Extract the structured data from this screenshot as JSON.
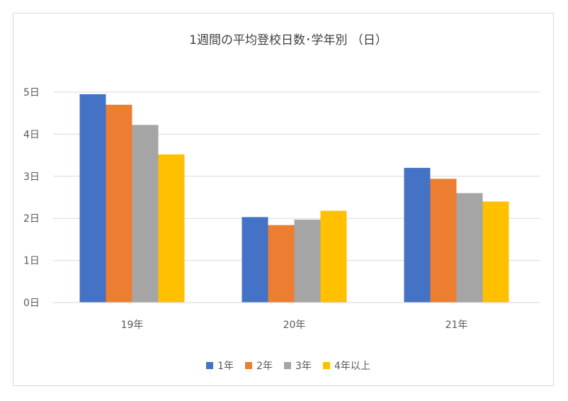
{
  "chart_data": {
    "type": "bar",
    "title": "1週間の平均登校日数･学年別 （日）",
    "categories": [
      "19年",
      "20年",
      "21年"
    ],
    "series": [
      {
        "name": "1年",
        "color": "#4472c4",
        "values": [
          4.95,
          2.03,
          3.2
        ]
      },
      {
        "name": "2年",
        "color": "#ed7d31",
        "values": [
          4.7,
          1.84,
          2.94
        ]
      },
      {
        "name": "3年",
        "color": "#a5a5a5",
        "values": [
          4.22,
          1.97,
          2.6
        ]
      },
      {
        "name": "4年以上",
        "color": "#ffc000",
        "values": [
          3.52,
          2.18,
          2.4
        ]
      }
    ],
    "y_ticks": [
      "0日",
      "1日",
      "2日",
      "3日",
      "4日",
      "5日"
    ],
    "ylim": [
      0,
      5
    ],
    "grid": true,
    "legend_position": "bottom"
  }
}
